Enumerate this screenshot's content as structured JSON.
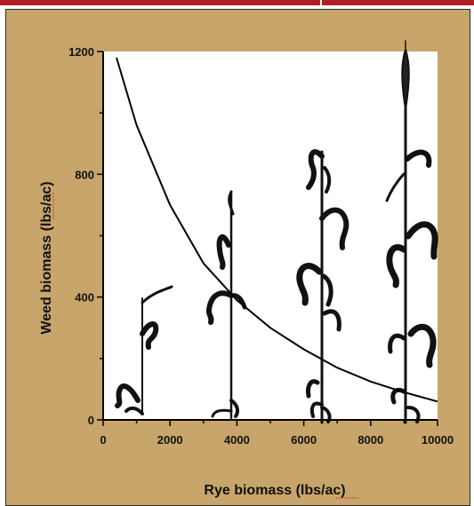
{
  "colors": {
    "background": "#c8a56a",
    "plot_area": "#ffffff",
    "curve": "#000000",
    "top_bar": "#b01e24"
  },
  "chart_data": {
    "type": "line",
    "title": "",
    "xlabel": "Rye biomass (lbs/ac)",
    "ylabel": "Weed biomass (lbs/ac)",
    "xlim": [
      0,
      10000
    ],
    "ylim": [
      0,
      1200
    ],
    "x_ticks": [
      0,
      2000,
      4000,
      6000,
      8000,
      10000
    ],
    "y_ticks": [
      0,
      400,
      800,
      1200
    ],
    "x_tick_labels": [
      "0",
      "2000",
      "4000",
      "6000",
      "8000",
      "10000"
    ],
    "y_tick_labels": [
      "0",
      "400",
      "800",
      "1200"
    ],
    "grid": false,
    "series": [
      {
        "x": [
          400,
          1000,
          2000,
          3000,
          4000,
          5000,
          6000,
          7000,
          8000,
          9000,
          10000
        ],
        "y": [
          1180,
          960,
          700,
          510,
          390,
          300,
          230,
          170,
          125,
          90,
          60
        ]
      }
    ],
    "background_illustration": "rye plants of increasing size"
  }
}
